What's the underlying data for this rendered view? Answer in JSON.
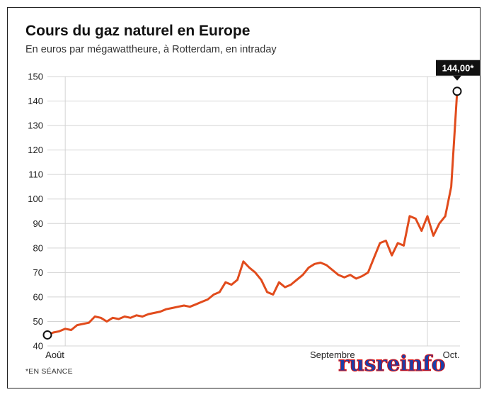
{
  "chart_data": {
    "type": "line",
    "title": "Cours du gaz naturel en Europe",
    "subtitle": "En euros par mégawattheure, à Rotterdam, en intraday",
    "footnote": "*EN SÉANCE",
    "ylim": [
      40,
      150
    ],
    "y_ticks": [
      "40",
      "50",
      "60",
      "70",
      "80",
      "90",
      "100",
      "110",
      "120",
      "130",
      "140",
      "150"
    ],
    "x_ticks": [
      "Août",
      "Septembre",
      "Oct."
    ],
    "x_range": [
      "2021-07-29",
      "2021-10-06"
    ],
    "callout": "144,00*",
    "series": [
      {
        "color": "#e14b1c",
        "points": [
          [
            "2021-07-29",
            44.5
          ],
          [
            "2021-07-30",
            45.5
          ],
          [
            "2021-07-31",
            46
          ],
          [
            "2021-08-01",
            47
          ],
          [
            "2021-08-02",
            46.5
          ],
          [
            "2021-08-03",
            48.5
          ],
          [
            "2021-08-04",
            49
          ],
          [
            "2021-08-05",
            49.5
          ],
          [
            "2021-08-06",
            52
          ],
          [
            "2021-08-07",
            51.5
          ],
          [
            "2021-08-08",
            50
          ],
          [
            "2021-08-09",
            51.5
          ],
          [
            "2021-08-10",
            51
          ],
          [
            "2021-08-11",
            52
          ],
          [
            "2021-08-12",
            51.5
          ],
          [
            "2021-08-13",
            52.5
          ],
          [
            "2021-08-14",
            52
          ],
          [
            "2021-08-15",
            53
          ],
          [
            "2021-08-16",
            53.5
          ],
          [
            "2021-08-17",
            54
          ],
          [
            "2021-08-18",
            55
          ],
          [
            "2021-08-19",
            55.5
          ],
          [
            "2021-08-20",
            56
          ],
          [
            "2021-08-21",
            56.5
          ],
          [
            "2021-08-22",
            56
          ],
          [
            "2021-08-23",
            57
          ],
          [
            "2021-08-24",
            58
          ],
          [
            "2021-08-25",
            59
          ],
          [
            "2021-08-26",
            61
          ],
          [
            "2021-08-27",
            62
          ],
          [
            "2021-08-28",
            66
          ],
          [
            "2021-08-29",
            65
          ],
          [
            "2021-08-30",
            67
          ],
          [
            "2021-08-31",
            74.5
          ],
          [
            "2021-09-01",
            72
          ],
          [
            "2021-09-02",
            70
          ],
          [
            "2021-09-03",
            67
          ],
          [
            "2021-09-04",
            62
          ],
          [
            "2021-09-05",
            61
          ],
          [
            "2021-09-06",
            66
          ],
          [
            "2021-09-07",
            64
          ],
          [
            "2021-09-08",
            65
          ],
          [
            "2021-09-09",
            67
          ],
          [
            "2021-09-10",
            69
          ],
          [
            "2021-09-11",
            72
          ],
          [
            "2021-09-12",
            73.5
          ],
          [
            "2021-09-13",
            74
          ],
          [
            "2021-09-14",
            73
          ],
          [
            "2021-09-15",
            71
          ],
          [
            "2021-09-16",
            69
          ],
          [
            "2021-09-17",
            68
          ],
          [
            "2021-09-18",
            69
          ],
          [
            "2021-09-19",
            67.5
          ],
          [
            "2021-09-20",
            68.5
          ],
          [
            "2021-09-21",
            70
          ],
          [
            "2021-09-22",
            76
          ],
          [
            "2021-09-23",
            82
          ],
          [
            "2021-09-24",
            83
          ],
          [
            "2021-09-25",
            77
          ],
          [
            "2021-09-26",
            82
          ],
          [
            "2021-09-27",
            81
          ],
          [
            "2021-09-28",
            93
          ],
          [
            "2021-09-29",
            92
          ],
          [
            "2021-09-30",
            87
          ],
          [
            "2021-10-01",
            93
          ],
          [
            "2021-10-02",
            85
          ],
          [
            "2021-10-03",
            90
          ],
          [
            "2021-10-04",
            93
          ],
          [
            "2021-10-05",
            105
          ],
          [
            "2021-10-06",
            144
          ]
        ]
      }
    ]
  }
}
